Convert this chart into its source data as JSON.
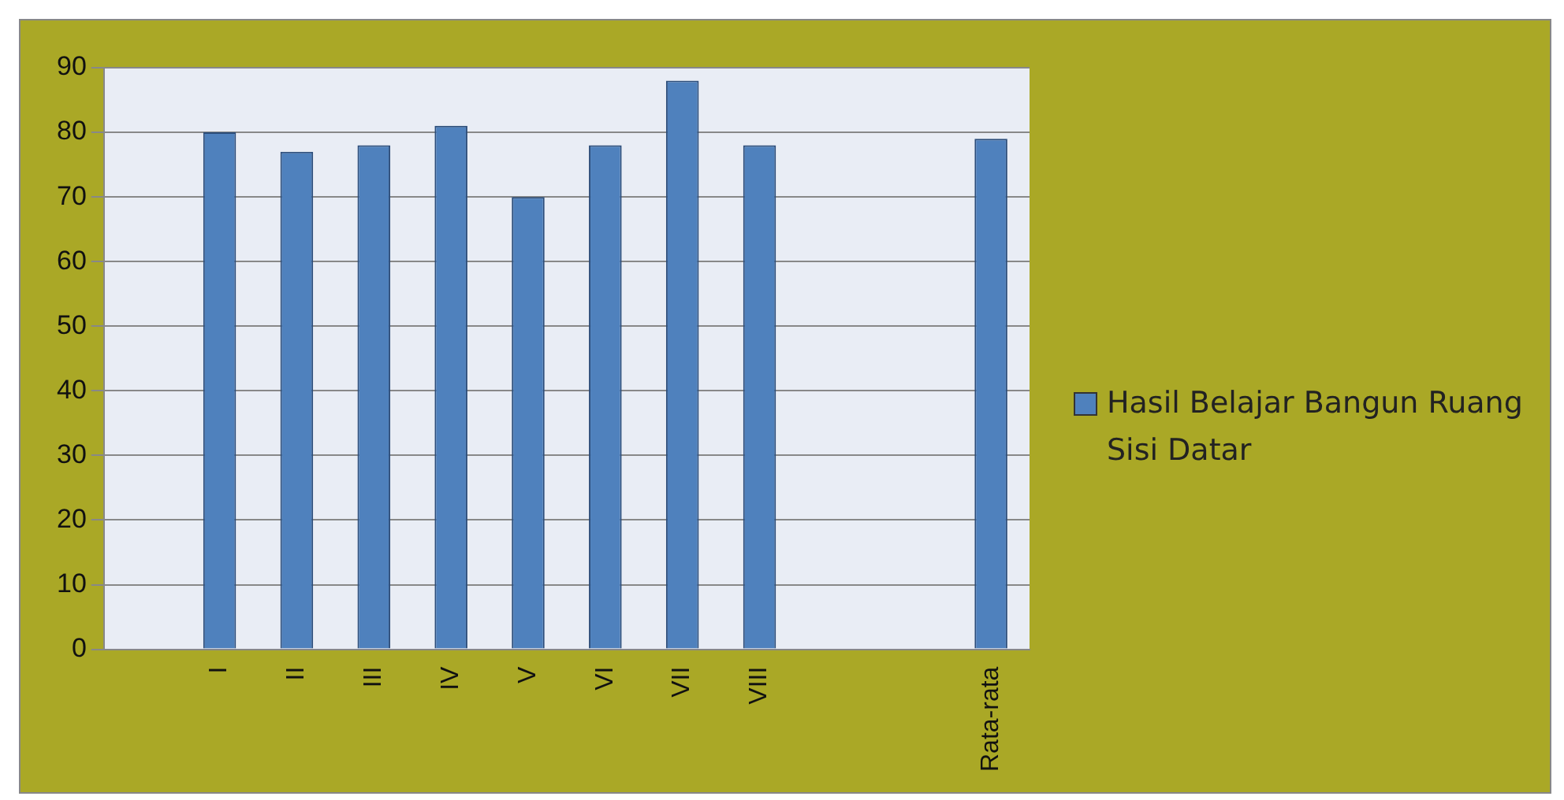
{
  "chart_data": {
    "type": "bar",
    "categories": [
      null,
      "I",
      "II",
      "III",
      "IV",
      "V",
      "VI",
      "VII",
      "VIII",
      null,
      null,
      "Rata-rata"
    ],
    "series": [
      {
        "name": "Hasil Belajar Bangun Ruang Sisi Datar",
        "color": "#4f81bd",
        "values": [
          null,
          80,
          77,
          78,
          81,
          70,
          78,
          88,
          78,
          null,
          null,
          79
        ]
      }
    ],
    "ylim": [
      0,
      90
    ],
    "yticks": [
      0,
      10,
      20,
      30,
      40,
      50,
      60,
      70,
      80,
      90
    ],
    "grid": "y",
    "legend": "right"
  }
}
